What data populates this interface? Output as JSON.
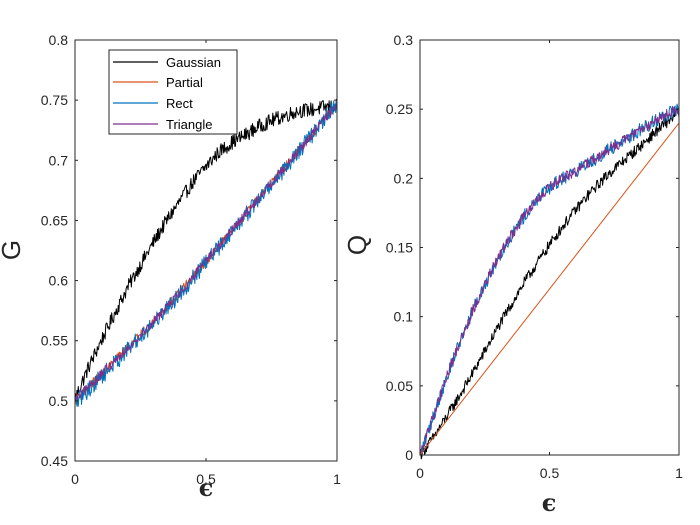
{
  "chart_data": [
    {
      "type": "line",
      "xlabel": "ϵ",
      "ylabel": "G",
      "xlim": [
        0,
        1
      ],
      "ylim": [
        0.45,
        0.8
      ],
      "xticks": [
        0,
        0.5,
        1
      ],
      "xtick_labels": [
        "0",
        "0.5",
        "1"
      ],
      "yticks": [
        0.45,
        0.5,
        0.55,
        0.6,
        0.65,
        0.7,
        0.75,
        0.8
      ],
      "ytick_labels": [
        "0.45",
        "0.5",
        "0.55",
        "0.6",
        "0.65",
        "0.7",
        "0.75",
        "0.8"
      ],
      "legend_position": "top-left",
      "legend": [
        "Gaussian",
        "Partial",
        "Rect",
        "Triangle"
      ],
      "series": [
        {
          "name": "Gaussian",
          "color": "#000000",
          "noise": 0.006,
          "x": [
            0,
            0.05,
            0.1,
            0.15,
            0.2,
            0.25,
            0.3,
            0.35,
            0.4,
            0.45,
            0.5,
            0.55,
            0.6,
            0.65,
            0.7,
            0.75,
            0.8,
            0.85,
            0.9,
            0.95,
            1.0
          ],
          "y": [
            0.502,
            0.527,
            0.55,
            0.572,
            0.594,
            0.613,
            0.632,
            0.65,
            0.666,
            0.682,
            0.695,
            0.707,
            0.715,
            0.721,
            0.728,
            0.733,
            0.737,
            0.741,
            0.742,
            0.744,
            0.745
          ]
        },
        {
          "name": "Partial",
          "color": "#d95319",
          "noise": 0.004,
          "x": [
            0,
            0.1,
            0.2,
            0.3,
            0.4,
            0.5,
            0.6,
            0.7,
            0.8,
            0.9,
            1.0
          ],
          "y": [
            0.5,
            0.522,
            0.544,
            0.566,
            0.59,
            0.616,
            0.642,
            0.668,
            0.694,
            0.72,
            0.747
          ]
        },
        {
          "name": "Rect",
          "color": "#0072bd",
          "noise": 0.007,
          "x": [
            0,
            0.1,
            0.2,
            0.3,
            0.4,
            0.5,
            0.6,
            0.7,
            0.8,
            0.9,
            1.0
          ],
          "y": [
            0.498,
            0.52,
            0.542,
            0.565,
            0.589,
            0.615,
            0.641,
            0.667,
            0.693,
            0.72,
            0.747
          ]
        },
        {
          "name": "Triangle",
          "color": "#7e2f8e",
          "noise": 0.004,
          "x": [
            0,
            0.1,
            0.2,
            0.3,
            0.4,
            0.5,
            0.6,
            0.7,
            0.8,
            0.9,
            1.0
          ],
          "y": [
            0.5,
            0.522,
            0.544,
            0.566,
            0.59,
            0.616,
            0.642,
            0.668,
            0.694,
            0.72,
            0.747
          ]
        }
      ]
    },
    {
      "type": "line",
      "xlabel": "ϵ",
      "ylabel": "Q",
      "xlim": [
        0,
        1
      ],
      "ylim": [
        0,
        0.3
      ],
      "xticks": [
        0,
        0.5,
        1
      ],
      "xtick_labels": [
        "0",
        "0.5",
        "1"
      ],
      "yticks": [
        0,
        0.05,
        0.1,
        0.15,
        0.2,
        0.25,
        0.3
      ],
      "ytick_labels": [
        "0",
        "0.05",
        "0.1",
        "0.15",
        "0.2",
        "0.25",
        "0.3"
      ],
      "series": [
        {
          "name": "Gaussian",
          "color": "#000000",
          "noise": 0.004,
          "x": [
            0,
            0.05,
            0.1,
            0.15,
            0.2,
            0.25,
            0.3,
            0.35,
            0.4,
            0.45,
            0.5,
            0.55,
            0.6,
            0.65,
            0.7,
            0.75,
            0.8,
            0.85,
            0.9,
            0.95,
            1.0
          ],
          "y": [
            0,
            0.012,
            0.027,
            0.042,
            0.058,
            0.075,
            0.092,
            0.108,
            0.124,
            0.138,
            0.152,
            0.165,
            0.177,
            0.188,
            0.198,
            0.207,
            0.215,
            0.223,
            0.232,
            0.24,
            0.248
          ]
        },
        {
          "name": "Partial",
          "color": "#d95319",
          "noise": 0,
          "x": [
            0,
            1.0
          ],
          "y": [
            0,
            0.24
          ]
        },
        {
          "name": "Rect",
          "color": "#0072bd",
          "noise": 0.005,
          "x": [
            0,
            0.05,
            0.1,
            0.15,
            0.2,
            0.25,
            0.3,
            0.35,
            0.4,
            0.45,
            0.5,
            0.55,
            0.6,
            0.65,
            0.7,
            0.75,
            0.8,
            0.85,
            0.9,
            0.95,
            1.0
          ],
          "y": [
            0,
            0.027,
            0.055,
            0.08,
            0.103,
            0.123,
            0.142,
            0.158,
            0.172,
            0.184,
            0.193,
            0.2,
            0.205,
            0.211,
            0.217,
            0.223,
            0.229,
            0.235,
            0.241,
            0.246,
            0.25
          ]
        },
        {
          "name": "Triangle",
          "color": "#7e2f8e",
          "noise": 0.004,
          "x": [
            0,
            0.05,
            0.1,
            0.15,
            0.2,
            0.25,
            0.3,
            0.35,
            0.4,
            0.45,
            0.5,
            0.55,
            0.6,
            0.65,
            0.7,
            0.75,
            0.8,
            0.85,
            0.9,
            0.95,
            1.0
          ],
          "y": [
            0,
            0.027,
            0.055,
            0.08,
            0.103,
            0.123,
            0.142,
            0.158,
            0.172,
            0.184,
            0.193,
            0.2,
            0.205,
            0.211,
            0.217,
            0.223,
            0.229,
            0.235,
            0.241,
            0.246,
            0.25
          ]
        }
      ]
    }
  ]
}
